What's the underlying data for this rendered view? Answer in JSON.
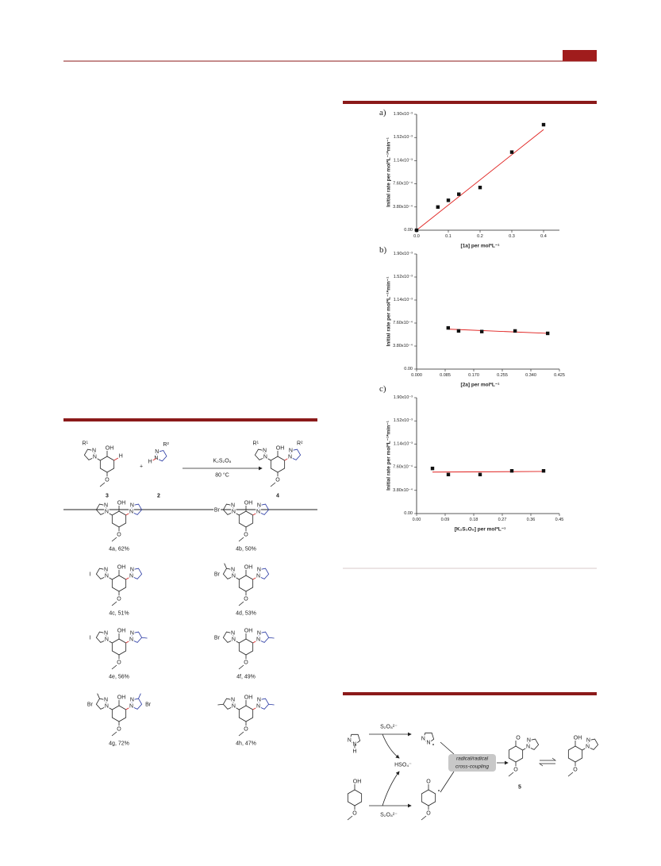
{
  "chart_data": [
    {
      "type": "scatter",
      "panel": "a)",
      "xlabel": "[1a] per mol*L⁻¹",
      "ylabel": "Initial rate per mol*L⁻¹*min⁻¹",
      "points": {
        "x": [
          0,
          0.067,
          0.1,
          0.133,
          0.2,
          0.3,
          0.4
        ],
        "values": [
          0,
          0.00038,
          0.00049,
          0.00059,
          0.0007,
          0.00128,
          0.00173
        ],
        "color": "#111111"
      },
      "fit": {
        "x": [
          0,
          0.4
        ],
        "values": [
          0,
          0.00165
        ],
        "color": "#e0201e"
      },
      "xlim": [
        0,
        0.45
      ],
      "ylim": [
        0,
        0.0019
      ],
      "xticks": [
        {
          "value": 0,
          "label": "0.0"
        },
        0.1,
        0.2,
        0.3,
        0.4
      ],
      "yticks": [
        {
          "value": 0,
          "label": "0.00"
        },
        {
          "value": 0.00038,
          "label": "3.80x10⁻⁴"
        },
        {
          "value": 0.00076,
          "label": "7.60x10⁻⁴"
        },
        {
          "value": 0.00114,
          "label": "1.14x10⁻³"
        },
        {
          "value": 0.00152,
          "label": "1.52x10⁻³"
        },
        {
          "value": 0.0019,
          "label": "1.90x10⁻³"
        }
      ]
    },
    {
      "type": "scatter",
      "panel": "b)",
      "xlabel": "[2a] per mol*L⁻¹",
      "ylabel": "Initial rate per mol*L⁻¹*min⁻¹",
      "points": {
        "x": [
          0.094,
          0.125,
          0.194,
          0.293,
          0.39
        ],
        "values": [
          0.00068,
          0.00063,
          0.00062,
          0.00063,
          0.00059
        ],
        "color": "#111111"
      },
      "fit": {
        "x": [
          0.094,
          0.39
        ],
        "values": [
          0.00066,
          0.00059
        ],
        "color": "#e0201e"
      },
      "xlim": [
        0,
        0.425
      ],
      "ylim": [
        0,
        0.0019
      ],
      "xticks": [
        {
          "value": 0,
          "label": "0.000"
        },
        0.085,
        {
          "value": 0.17,
          "label": "0.170"
        },
        0.255,
        {
          "value": 0.34,
          "label": "0.340"
        },
        0.425
      ],
      "yticks": [
        {
          "value": 0,
          "label": "0.00"
        },
        {
          "value": 0.00038,
          "label": "3.80x10⁻⁴"
        },
        {
          "value": 0.00076,
          "label": "7.60x10⁻⁴"
        },
        {
          "value": 0.00114,
          "label": "1.14x10⁻³"
        },
        {
          "value": 0.00152,
          "label": "1.52x10⁻³"
        },
        {
          "value": 0.0019,
          "label": "1.90x10⁻³"
        }
      ]
    },
    {
      "type": "scatter",
      "panel": "c)",
      "xlabel": "[K₂S₂O₈] per mol*L⁻¹",
      "ylabel": "Initial rate per mol*L⁻¹*min⁻¹",
      "points": {
        "x": [
          0.05,
          0.1,
          0.2,
          0.3,
          0.4
        ],
        "values": [
          0.00074,
          0.00064,
          0.00064,
          0.0007,
          0.0007
        ],
        "color": "#111111"
      },
      "fit": {
        "x": [
          0.05,
          0.4
        ],
        "values": [
          0.00068,
          0.00069
        ],
        "color": "#e0201e"
      },
      "xlim": [
        0,
        0.45
      ],
      "ylim": [
        0,
        0.0019
      ],
      "xticks": [
        {
          "value": 0,
          "label": "0.00"
        },
        0.09,
        0.18,
        0.27,
        0.36,
        0.45
      ],
      "yticks": [
        {
          "value": 0,
          "label": "0.00"
        },
        {
          "value": 0.00038,
          "label": "3.80x10⁻⁴"
        },
        {
          "value": 0.00076,
          "label": "7.60x10⁻⁴"
        },
        {
          "value": 0.00114,
          "label": "1.14x10⁻³"
        },
        {
          "value": 0.00152,
          "label": "1.52x10⁻³"
        },
        {
          "value": 0.0019,
          "label": "1.90x10⁻³"
        }
      ]
    }
  ],
  "atom_labels": {
    "oh": "OH",
    "o": "O",
    "n": "N",
    "h": "H",
    "r1": "R¹",
    "r2": "R²"
  },
  "scheme": {
    "reagent": "K₂S₂O₈",
    "conditions": "80 °C",
    "plus": "+",
    "sm_label": "3",
    "reagent2_label": "2",
    "product_label": "4",
    "products": [
      {
        "label": "4a, 62%"
      },
      {
        "label": "4b, 50%",
        "left_substituent": "Br"
      },
      {
        "label": "4c, 51%",
        "left_substituent": "I"
      },
      {
        "label": "4d, 53%",
        "left_substituent": "Br"
      },
      {
        "label": "4e, 56%",
        "left_substituent": "I"
      },
      {
        "label": "4f, 49%",
        "left_substituent": "Br"
      },
      {
        "label": "4g, 72%",
        "left_substituent": "Br",
        "right_substituent": "Br"
      },
      {
        "label": "4h, 47%"
      }
    ]
  },
  "mechanism": {
    "oxidant": "S₂O₈²⁻",
    "byproduct": "HSO₄⁻",
    "step_line1": "radical/radical",
    "step_line2": "cross-coupling",
    "intermediate": "5"
  }
}
